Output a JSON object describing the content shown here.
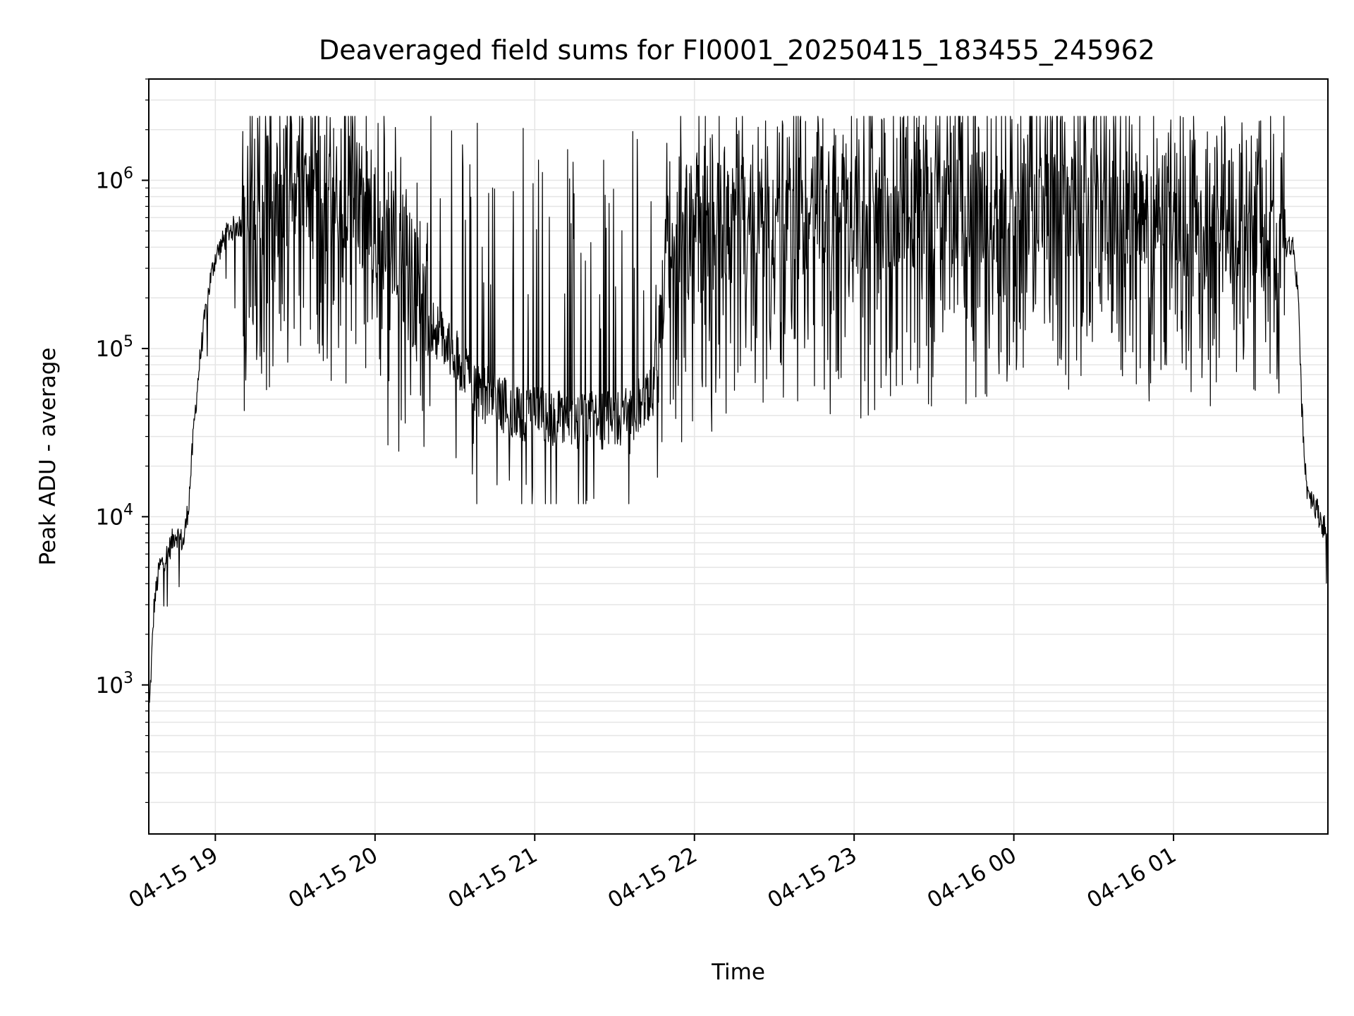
{
  "chart_data": {
    "type": "line",
    "title": "Deaveraged field sums for FI0001_20250415_183455_245962",
    "xlabel": "Time",
    "ylabel": "Peak ADU - average",
    "yscale": "log",
    "grid": true,
    "line_color": "#000000",
    "grid_color": "#e5e5e5",
    "x_range": [
      "2025-04-15 18:35",
      "2025-04-16 01:58"
    ],
    "ylim": [
      130,
      4000000
    ],
    "x_ticks": [
      "04-15 19",
      "04-15 20",
      "04-15 21",
      "04-15 22",
      "04-15 23",
      "04-16 00",
      "04-16 01"
    ],
    "y_ticks": [
      {
        "base": "10",
        "exp": "3",
        "value": 1000
      },
      {
        "base": "10",
        "exp": "4",
        "value": 10000
      },
      {
        "base": "10",
        "exp": "5",
        "value": 100000
      },
      {
        "base": "10",
        "exp": "6",
        "value": 1000000
      }
    ],
    "series": [
      {
        "x": [
          "2025-04-15 18:35",
          "2025-04-15 18:37",
          "2025-04-15 18:39",
          "2025-04-15 18:42",
          "2025-04-15 18:45",
          "2025-04-15 18:48",
          "2025-04-15 18:50",
          "2025-04-15 18:52",
          "2025-04-15 18:54",
          "2025-04-15 18:56",
          "2025-04-15 18:58",
          "2025-04-15 19:00",
          "2025-04-15 19:05",
          "2025-04-15 19:10",
          "2025-04-15 19:20",
          "2025-04-15 19:30",
          "2025-04-15 19:40",
          "2025-04-15 19:50",
          "2025-04-15 20:00",
          "2025-04-15 20:10",
          "2025-04-15 20:20",
          "2025-04-15 20:30",
          "2025-04-15 20:40",
          "2025-04-15 20:50",
          "2025-04-15 21:00",
          "2025-04-15 21:10",
          "2025-04-15 21:20",
          "2025-04-15 21:30",
          "2025-04-15 21:40",
          "2025-04-15 21:45",
          "2025-04-15 21:50",
          "2025-04-15 22:00",
          "2025-04-15 22:30",
          "2025-04-15 23:00",
          "2025-04-15 23:30",
          "2025-04-16 00:00",
          "2025-04-16 00:30",
          "2025-04-16 01:00",
          "2025-04-16 01:20",
          "2025-04-16 01:40",
          "2025-04-16 01:45",
          "2025-04-16 01:47",
          "2025-04-16 01:48",
          "2025-04-16 01:50",
          "2025-04-16 01:53",
          "2025-04-16 01:56",
          "2025-04-16 01:58"
        ],
        "y": [
          600,
          3000,
          5000,
          6000,
          8000,
          7000,
          12000,
          35000,
          80000,
          150000,
          250000,
          350000,
          500000,
          550000,
          600000,
          750000,
          800000,
          700000,
          500000,
          250000,
          150000,
          90000,
          55000,
          45000,
          40000,
          38000,
          37000,
          38000,
          45000,
          55000,
          300000,
          400000,
          500000,
          550000,
          600000,
          650000,
          700000,
          550000,
          450000,
          420000,
          400000,
          200000,
          50000,
          15000,
          12000,
          9000,
          8000
        ],
        "spikes_high": [
          1500000,
          1800000,
          2000000,
          2400000,
          1700000,
          1800000,
          1700000,
          1900000
        ],
        "spikes_low": [
          30000,
          60000,
          80000,
          100000,
          110000,
          120000
        ]
      }
    ]
  }
}
